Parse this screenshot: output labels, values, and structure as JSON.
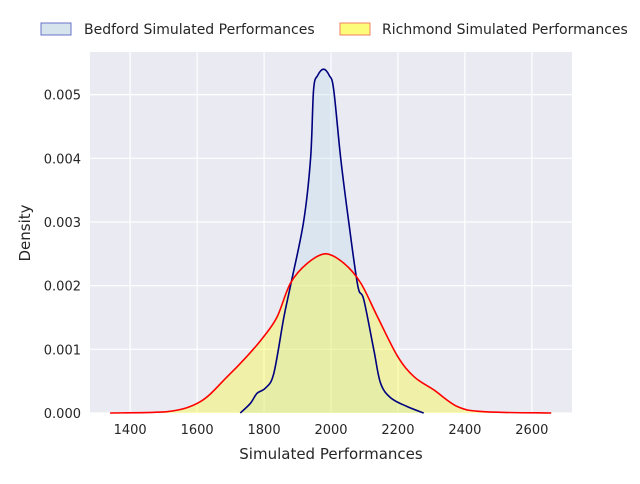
{
  "chart_data": {
    "type": "area",
    "title": "",
    "xlabel": "Simulated Performances",
    "ylabel": "Density",
    "xlim": [
      1280,
      2720
    ],
    "ylim": [
      0,
      0.00567
    ],
    "xticks": [
      1400,
      1600,
      1800,
      2000,
      2200,
      2400,
      2600
    ],
    "xtick_labels": [
      "1400",
      "1600",
      "1800",
      "2000",
      "2200",
      "2400",
      "2600"
    ],
    "yticks": [
      0,
      0.001,
      0.002,
      0.003,
      0.004,
      0.005
    ],
    "ytick_labels": [
      "0.000",
      "0.001",
      "0.002",
      "0.003",
      "0.004",
      "0.005"
    ],
    "grid": true,
    "legend_placement": "top-outside",
    "series": [
      {
        "name": "Bedford Simulated Performances",
        "line_color": "#00007f",
        "fill_color": "#add8e6",
        "x": [
          1729,
          1759,
          1779,
          1804,
          1829,
          1859,
          1879,
          1918,
          1939,
          1948,
          1960,
          1978,
          1995,
          2008,
          2029,
          2053,
          2080,
          2098,
          2128,
          2148,
          2178,
          2228,
          2277
        ],
        "y": [
          0,
          0.00015,
          0.00031,
          0.00039,
          0.00062,
          0.0015,
          0.002,
          0.003,
          0.004,
          0.00508,
          0.0053,
          0.0054,
          0.0053,
          0.00508,
          0.004,
          0.003,
          0.002,
          0.00178,
          0.00099,
          0.00047,
          0.00024,
          0.0001,
          0
        ]
      },
      {
        "name": "Richmond Simulated Performances",
        "line_color": "#ff0000",
        "fill_color": "#ffff00",
        "x": [
          1340,
          1510,
          1610,
          1690,
          1749,
          1799,
          1839,
          1879,
          1929,
          1984,
          2039,
          2089,
          2139,
          2199,
          2248,
          2308,
          2378,
          2457,
          2658
        ],
        "y": [
          0,
          2e-05,
          0.00018,
          0.00057,
          0.00089,
          0.0012,
          0.00151,
          0.00204,
          0.00235,
          0.0025,
          0.00235,
          0.00204,
          0.00151,
          0.00089,
          0.00057,
          0.00036,
          0.0001,
          2e-05,
          0
        ]
      }
    ]
  }
}
